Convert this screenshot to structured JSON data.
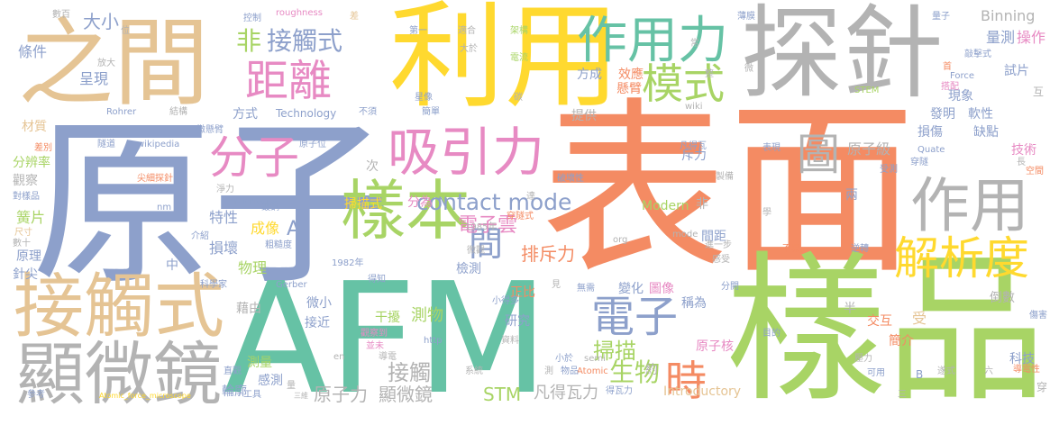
{
  "words": [
    {
      "text": "原子",
      "color": "#8da0cb"
    },
    {
      "text": "表面",
      "color": "#f48b63"
    },
    {
      "text": "AFM",
      "color": "#66c2a5"
    },
    {
      "text": "樣品",
      "color": "#a8d465"
    },
    {
      "text": "探針",
      "color": "#b3b3b3"
    },
    {
      "text": "利用",
      "color": "#ffd92f"
    },
    {
      "text": "之間",
      "color": "#e5c494"
    },
    {
      "text": "接觸式",
      "color": "#e5c494"
    },
    {
      "text": "顯微鏡",
      "color": "#b3b3b3"
    },
    {
      "text": "作用力",
      "color": "#66c2a5"
    },
    {
      "text": "作用",
      "color": "#b3b3b3"
    },
    {
      "text": "模式",
      "color": "#a8d465"
    },
    {
      "text": "樣本",
      "color": "#a8d465"
    },
    {
      "text": "吸引力",
      "color": "#e78ac3"
    },
    {
      "text": "分子",
      "color": "#e78ac3"
    },
    {
      "text": "距離",
      "color": "#e78ac3"
    },
    {
      "text": "電子",
      "color": "#8da0cb"
    },
    {
      "text": "解析度",
      "color": "#ffd92f"
    },
    {
      "text": "時",
      "color": "#f48b63"
    },
    {
      "text": "圖",
      "color": "#b3b3b3"
    },
    {
      "text": "間",
      "color": "#8da0cb"
    },
    {
      "text": "非",
      "color": "#a8d465"
    },
    {
      "text": "接觸式",
      "color": "#8da0cb"
    },
    {
      "text": "contact mode",
      "color": "#8da0cb"
    },
    {
      "text": "電子雲",
      "color": "#e78ac3"
    },
    {
      "text": "排斥力",
      "color": "#f48b63"
    },
    {
      "text": "掃描",
      "color": "#a8d465"
    },
    {
      "text": "生物",
      "color": "#a8d465"
    },
    {
      "text": "接觸",
      "color": "#b3b3b3"
    },
    {
      "text": "原子力",
      "color": "#b3b3b3"
    },
    {
      "text": "顯微鏡",
      "color": "#b3b3b3"
    },
    {
      "text": "STM",
      "color": "#a8d465"
    },
    {
      "text": "凡得瓦力",
      "color": "#b3b3b3"
    },
    {
      "text": "Introductory",
      "color": "#e5c494"
    },
    {
      "text": "Binning",
      "color": "#b3b3b3"
    },
    {
      "text": "量測",
      "color": "#8da0cb"
    },
    {
      "text": "操作",
      "color": "#e78ac3"
    },
    {
      "text": "試片",
      "color": "#8da0cb"
    },
    {
      "text": "大小",
      "color": "#8da0cb"
    },
    {
      "text": "條件",
      "color": "#8da0cb"
    },
    {
      "text": "呈現",
      "color": "#8da0cb"
    },
    {
      "text": "材質",
      "color": "#e5c494"
    },
    {
      "text": "分辨率",
      "color": "#a8d465"
    },
    {
      "text": "觀察",
      "color": "#b3b3b3"
    },
    {
      "text": "簧片",
      "color": "#a8d465"
    },
    {
      "text": "原理",
      "color": "#8da0cb"
    },
    {
      "text": "針尖",
      "color": "#8da0cb"
    },
    {
      "text": "方式",
      "color": "#8da0cb"
    },
    {
      "text": "Technology",
      "color": "#8da0cb"
    },
    {
      "text": "特性",
      "color": "#8da0cb"
    },
    {
      "text": "成像",
      "color": "#ffd92f"
    },
    {
      "text": "損壞",
      "color": "#8da0cb"
    },
    {
      "text": "物理",
      "color": "#a8d465"
    },
    {
      "text": "A",
      "color": "#8da0cb"
    },
    {
      "text": "次",
      "color": "#b3b3b3"
    },
    {
      "text": "檢測",
      "color": "#8da0cb"
    },
    {
      "text": "測物",
      "color": "#a8d465"
    },
    {
      "text": "研究",
      "color": "#8da0cb"
    },
    {
      "text": "變化",
      "color": "#8da0cb"
    },
    {
      "text": "圖像",
      "color": "#e78ac3"
    },
    {
      "text": "稱為",
      "color": "#8da0cb"
    },
    {
      "text": "原子核",
      "color": "#e78ac3"
    },
    {
      "text": "原子級",
      "color": "#b3b3b3"
    },
    {
      "text": "斥力",
      "color": "#8da0cb"
    },
    {
      "text": "Modern",
      "color": "#a8d465"
    },
    {
      "text": "懸臂",
      "color": "#f48b63"
    },
    {
      "text": "效應",
      "color": "#f48b63"
    },
    {
      "text": "方成",
      "color": "#8da0cb"
    },
    {
      "text": "提供",
      "color": "#b3b3b3"
    },
    {
      "text": "現象",
      "color": "#8da0cb"
    },
    {
      "text": "發明",
      "color": "#8da0cb"
    },
    {
      "text": "軟性",
      "color": "#8da0cb"
    },
    {
      "text": "缺點",
      "color": "#8da0cb"
    },
    {
      "text": "損傷",
      "color": "#8da0cb"
    },
    {
      "text": "技術",
      "color": "#e78ac3"
    },
    {
      "text": "倒數",
      "color": "#b3b3b3"
    },
    {
      "text": "交互",
      "color": "#f48b63"
    },
    {
      "text": "簡介",
      "color": "#f48b63"
    },
    {
      "text": "科技",
      "color": "#8da0cb"
    },
    {
      "text": "輪廓",
      "color": "#8da0cb"
    },
    {
      "text": "感測",
      "color": "#8da0cb"
    },
    {
      "text": "測量",
      "color": "#a8d465"
    },
    {
      "text": "藉由",
      "color": "#b3b3b3"
    },
    {
      "text": "接近",
      "color": "#8da0cb"
    },
    {
      "text": "微小",
      "color": "#8da0cb"
    },
    {
      "text": "干擾",
      "color": "#a8d465"
    },
    {
      "text": "正比",
      "color": "#f48b63"
    },
    {
      "text": "中",
      "color": "#8da0cb"
    },
    {
      "text": "分為",
      "color": "#e78ac3"
    },
    {
      "text": "掃描式",
      "color": "#ffd92f"
    },
    {
      "text": "兩",
      "color": "#8da0cb"
    },
    {
      "text": "間距",
      "color": "#8da0cb"
    },
    {
      "text": "半",
      "color": "#b3b3b3"
    },
    {
      "text": "受",
      "color": "#e5c494"
    },
    {
      "text": "非",
      "color": "#b3b3b3"
    },
    {
      "text": "約",
      "color": "#b3b3b3"
    },
    {
      "text": "N",
      "color": "#8da0cb"
    },
    {
      "text": "roughness",
      "color": "#e78ac3"
    },
    {
      "text": "數百",
      "color": "#b3b3b3"
    },
    {
      "text": "控制",
      "color": "#8da0cb"
    },
    {
      "text": "差",
      "color": "#e5c494"
    },
    {
      "text": "第一",
      "color": "#8da0cb"
    },
    {
      "text": "適合",
      "color": "#b3b3b3"
    },
    {
      "text": "架構",
      "color": "#a8d465"
    },
    {
      "text": "電流",
      "color": "#a8d465"
    },
    {
      "text": "大於",
      "color": "#b3b3b3"
    },
    {
      "text": "常",
      "color": "#b3b3b3"
    },
    {
      "text": "整",
      "color": "#b3b3b3"
    },
    {
      "text": "微",
      "color": "#b3b3b3"
    },
    {
      "text": "薄膜",
      "color": "#8da0cb"
    },
    {
      "text": "量子",
      "color": "#8da0cb"
    },
    {
      "text": "敲擊式",
      "color": "#8da0cb"
    },
    {
      "text": "Force",
      "color": "#8da0cb"
    },
    {
      "text": "首",
      "color": "#f48b63"
    },
    {
      "text": "搭配",
      "color": "#e78ac3"
    },
    {
      "text": "互",
      "color": "#b3b3b3"
    },
    {
      "text": "STEM",
      "color": "#a8d465"
    },
    {
      "text": "放大",
      "color": "#b3b3b3"
    },
    {
      "text": "位",
      "color": "#b3b3b3"
    },
    {
      "text": "Rohrer",
      "color": "#8da0cb"
    },
    {
      "text": "結構",
      "color": "#b3b3b3"
    },
    {
      "text": "不須",
      "color": "#8da0cb"
    },
    {
      "text": "簡單",
      "color": "#8da0cb"
    },
    {
      "text": "星像",
      "color": "#8da0cb"
    },
    {
      "text": "碳",
      "color": "#b3b3b3"
    },
    {
      "text": "wiki",
      "color": "#b3b3b3"
    },
    {
      "text": "隧道",
      "color": "#8da0cb"
    },
    {
      "text": "wikipedia",
      "color": "#8da0cb"
    },
    {
      "text": "微懸臂",
      "color": "#8da0cb"
    },
    {
      "text": "原子位",
      "color": "#8da0cb"
    },
    {
      "text": "凡得瓦",
      "color": "#8da0cb"
    },
    {
      "text": "表現",
      "color": "#8da0cb"
    },
    {
      "text": "Quate",
      "color": "#8da0cb"
    },
    {
      "text": "穿隧",
      "color": "#8da0cb"
    },
    {
      "text": "受測",
      "color": "#8da0cb"
    },
    {
      "text": "空間",
      "color": "#f48b63"
    },
    {
      "text": "長",
      "color": "#b3b3b3"
    },
    {
      "text": "差別",
      "color": "#f48b63"
    },
    {
      "text": "對樣品",
      "color": "#8da0cb"
    },
    {
      "text": "尺寸",
      "color": "#e5c494"
    },
    {
      "text": "數十",
      "color": "#b3b3b3"
    },
    {
      "text": "尖細探針",
      "color": "#f48b63"
    },
    {
      "text": "淨力",
      "color": "#b3b3b3"
    },
    {
      "text": "鍍鋼",
      "color": "#8da0cb"
    },
    {
      "text": "nm",
      "color": "#8da0cb"
    },
    {
      "text": "Micricopy",
      "color": "#8da0cb"
    },
    {
      "text": "介紹",
      "color": "#8da0cb"
    },
    {
      "text": "粗糙度",
      "color": "#8da0cb"
    },
    {
      "text": "破壞性",
      "color": "#8da0cb"
    },
    {
      "text": "穿隧式",
      "color": "#f48b63"
    },
    {
      "text": "1985年",
      "color": "#b3b3b3"
    },
    {
      "text": "達",
      "color": "#b3b3b3"
    },
    {
      "text": "製備",
      "color": "#b3b3b3"
    },
    {
      "text": "進一步",
      "color": "#b3b3b3"
    },
    {
      "text": "mode",
      "color": "#b3b3b3"
    },
    {
      "text": "org",
      "color": "#b3b3b3"
    },
    {
      "text": "學",
      "color": "#b3b3b3"
    },
    {
      "text": "不易",
      "color": "#f48b63"
    },
    {
      "text": "逆轉",
      "color": "#8da0cb"
    },
    {
      "text": "感受",
      "color": "#b3b3b3"
    },
    {
      "text": "微觀",
      "color": "#b3b3b3"
    },
    {
      "text": "1982年",
      "color": "#8da0cb"
    },
    {
      "text": "得知",
      "color": "#8da0cb"
    },
    {
      "text": "科學家",
      "color": "#8da0cb"
    },
    {
      "text": "Gerber",
      "color": "#8da0cb"
    },
    {
      "text": "小得多",
      "color": "#8da0cb"
    },
    {
      "text": "見",
      "color": "#b3b3b3"
    },
    {
      "text": "無需",
      "color": "#8da0cb"
    },
    {
      "text": "分開",
      "color": "#8da0cb"
    },
    {
      "text": "目的",
      "color": "#8da0cb"
    },
    {
      "text": "傷害",
      "color": "#8da0cb"
    },
    {
      "text": "導電性",
      "color": "#f48b63"
    },
    {
      "text": "可用",
      "color": "#8da0cb"
    },
    {
      "text": "遂式",
      "color": "#b3b3b3"
    },
    {
      "text": "六",
      "color": "#b3b3b3"
    },
    {
      "text": "觀察到",
      "color": "#e78ac3"
    },
    {
      "text": "並未",
      "color": "#e78ac3"
    },
    {
      "text": "http",
      "color": "#8da0cb"
    },
    {
      "text": "資料",
      "color": "#b3b3b3"
    },
    {
      "text": "導電",
      "color": "#b3b3b3"
    },
    {
      "text": "系統",
      "color": "#b3b3b3"
    },
    {
      "text": "測",
      "color": "#b3b3b3"
    },
    {
      "text": "小於",
      "color": "#8da0cb"
    },
    {
      "text": "semi",
      "color": "#b3b3b3"
    },
    {
      "text": "Atomic",
      "color": "#f48b63"
    },
    {
      "text": "物品",
      "color": "#8da0cb"
    },
    {
      "text": "得瓦力",
      "color": "#8da0cb"
    },
    {
      "text": "B",
      "color": "#8da0cb"
    },
    {
      "text": "穿",
      "color": "#b3b3b3"
    },
    {
      "text": "直觀",
      "color": "#8da0cb"
    },
    {
      "text": "量",
      "color": "#b3b3b3"
    },
    {
      "text": "en",
      "color": "#b3b3b3"
    },
    {
      "text": "工具",
      "color": "#8da0cb"
    },
    {
      "text": "參考",
      "color": "#8da0cb"
    },
    {
      "text": "Atomic_force_microscope",
      "color": "#ffd92f"
    },
    {
      "text": "三維",
      "color": "#b3b3b3"
    },
    {
      "text": "三",
      "color": "#b3b3b3"
    },
    {
      "text": "壓力",
      "color": "#b3b3b3"
    }
  ]
}
